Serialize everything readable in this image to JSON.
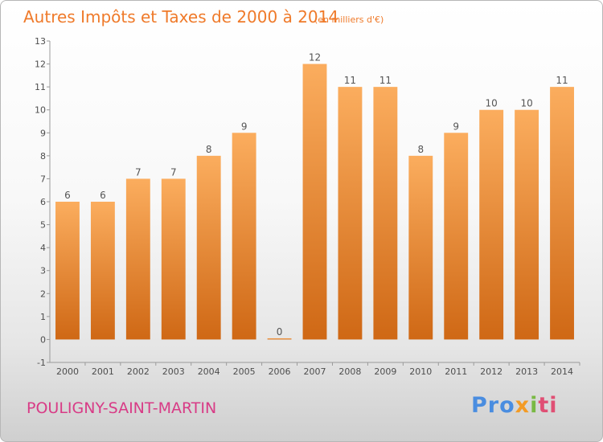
{
  "header": {
    "title": "Autres Impôts et Taxes de 2000 à 2014",
    "unit": "(en milliers d'€)"
  },
  "footer": {
    "city": "POULIGNY-SAINT-MARTIN",
    "logo": [
      "Pro",
      "x",
      "i",
      "ti"
    ]
  },
  "chart_data": {
    "type": "bar",
    "title": "Autres Impôts et Taxes de 2000 à 2014",
    "subtitle": "(en milliers d'€)",
    "xlabel": "",
    "ylabel": "",
    "categories": [
      "2000",
      "2001",
      "2002",
      "2003",
      "2004",
      "2005",
      "2006",
      "2007",
      "2008",
      "2009",
      "2010",
      "2011",
      "2012",
      "2013",
      "2014"
    ],
    "values": [
      6,
      6,
      7,
      7,
      8,
      9,
      0,
      12,
      11,
      11,
      8,
      9,
      10,
      10,
      11
    ],
    "data_labels": [
      "6",
      "6",
      "7",
      "7",
      "8",
      "9",
      "0",
      "12",
      "11",
      "11",
      "8",
      "9",
      "10",
      "10",
      "11"
    ],
    "ylim": [
      -1,
      13
    ],
    "yticks": [
      -1,
      0,
      1,
      2,
      3,
      4,
      5,
      6,
      7,
      8,
      9,
      10,
      11,
      12,
      13
    ],
    "grid": false,
    "legend": "none",
    "bar_colors": [
      "#fbad5e",
      "#cf6815"
    ],
    "axis_color": "#9a9a9a"
  }
}
